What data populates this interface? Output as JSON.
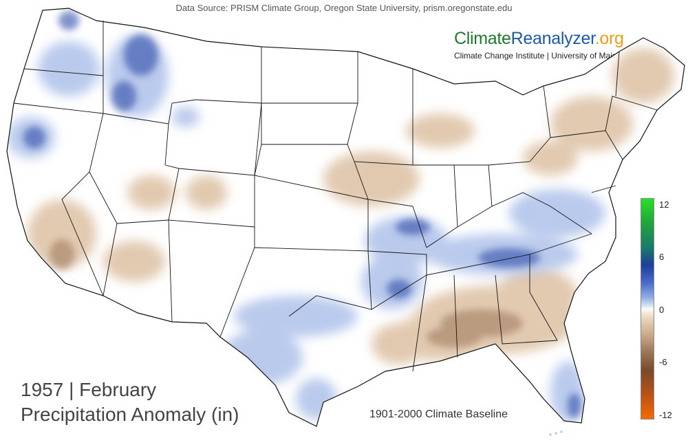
{
  "source_text": "Data Source: PRISM Climate Group, Oregon State University, prism.oregonstate.edu",
  "brand": {
    "name_part1": "Climate",
    "name_part2": "Reanalyzer",
    "name_part3": ".org",
    "subtitle": "Climate Change Institute | University of Maine",
    "colors": {
      "part1": "#1f7a2c",
      "part2": "#1b5aa7",
      "part3": "#f29b1c"
    }
  },
  "map": {
    "year_line": "1957 | February",
    "variable_line": "Precipitation Anomaly (in)",
    "baseline": "1901-2000 Climate Baseline"
  },
  "legend": {
    "ticks": [
      "12",
      "6",
      "0",
      "-6",
      "-12"
    ],
    "min": -12,
    "max": 12,
    "colors": {
      "wet_extreme": "#28e028",
      "wet": "#1d3f9a",
      "neutral": "#fdfbf7",
      "dry": "#9a7558",
      "dry_extreme": "#f56a00"
    }
  }
}
